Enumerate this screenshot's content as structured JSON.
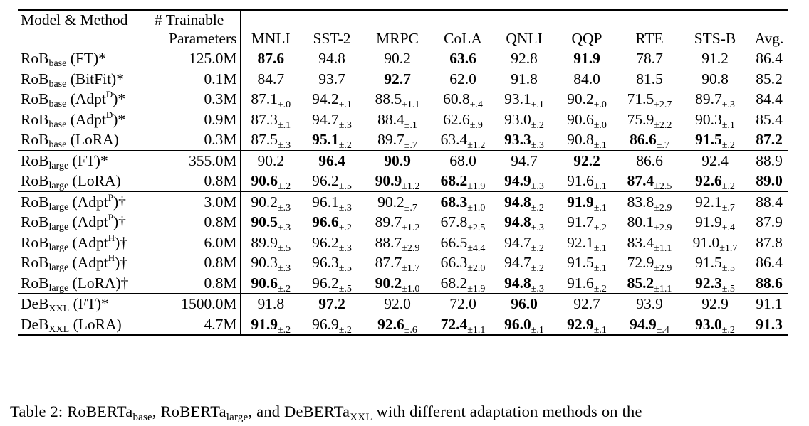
{
  "header": {
    "model_method": "Model & Method",
    "params_line1": "# Trainable",
    "params_line2": "Parameters",
    "tasks": [
      "MNLI",
      "SST-2",
      "MRPC",
      "CoLA",
      "QNLI",
      "QQP",
      "RTE",
      "STS-B",
      "Avg."
    ]
  },
  "groups": [
    [
      {
        "base": "RoB",
        "sub": "base",
        "suffix": "(FT)*",
        "params": "125.0M",
        "cells": [
          [
            "87.6",
            "",
            true
          ],
          [
            "94.8",
            "",
            false
          ],
          [
            "90.2",
            "",
            false
          ],
          [
            "63.6",
            "",
            true
          ],
          [
            "92.8",
            "",
            false
          ],
          [
            "91.9",
            "",
            true
          ],
          [
            "78.7",
            "",
            false
          ],
          [
            "91.2",
            "",
            false
          ],
          [
            "86.4",
            "",
            false
          ]
        ]
      },
      {
        "base": "RoB",
        "sub": "base",
        "suffix": "(BitFit)*",
        "params": "0.1M",
        "cells": [
          [
            "84.7",
            "",
            false
          ],
          [
            "93.7",
            "",
            false
          ],
          [
            "92.7",
            "",
            true
          ],
          [
            "62.0",
            "",
            false
          ],
          [
            "91.8",
            "",
            false
          ],
          [
            "84.0",
            "",
            false
          ],
          [
            "81.5",
            "",
            false
          ],
          [
            "90.8",
            "",
            false
          ],
          [
            "85.2",
            "",
            false
          ]
        ]
      },
      {
        "base": "RoB",
        "sub": "base",
        "suffix": "(Adpt",
        "sup": "D",
        "suffix2": ")*",
        "params": "0.3M",
        "cells": [
          [
            "87.1",
            "±.0",
            false
          ],
          [
            "94.2",
            "±.1",
            false
          ],
          [
            "88.5",
            "±1.1",
            false
          ],
          [
            "60.8",
            "±.4",
            false
          ],
          [
            "93.1",
            "±.1",
            false
          ],
          [
            "90.2",
            "±.0",
            false
          ],
          [
            "71.5",
            "±2.7",
            false
          ],
          [
            "89.7",
            "±.3",
            false
          ],
          [
            "84.4",
            "",
            false
          ]
        ]
      },
      {
        "base": "RoB",
        "sub": "base",
        "suffix": "(Adpt",
        "sup": "D",
        "suffix2": ")*",
        "params": "0.9M",
        "cells": [
          [
            "87.3",
            "±.1",
            false
          ],
          [
            "94.7",
            "±.3",
            false
          ],
          [
            "88.4",
            "±.1",
            false
          ],
          [
            "62.6",
            "±.9",
            false
          ],
          [
            "93.0",
            "±.2",
            false
          ],
          [
            "90.6",
            "±.0",
            false
          ],
          [
            "75.9",
            "±2.2",
            false
          ],
          [
            "90.3",
            "±.1",
            false
          ],
          [
            "85.4",
            "",
            false
          ]
        ]
      },
      {
        "base": "RoB",
        "sub": "base",
        "suffix": "(LoRA)",
        "params": "0.3M",
        "cells": [
          [
            "87.5",
            "±.3",
            false
          ],
          [
            "95.1",
            "±.2",
            true
          ],
          [
            "89.7",
            "±.7",
            false
          ],
          [
            "63.4",
            "±1.2",
            false
          ],
          [
            "93.3",
            "±.3",
            true
          ],
          [
            "90.8",
            "±.1",
            false
          ],
          [
            "86.6",
            "±.7",
            true
          ],
          [
            "91.5",
            "±.2",
            true
          ],
          [
            "87.2",
            "",
            true
          ]
        ]
      }
    ],
    [
      {
        "base": "RoB",
        "sub": "large",
        "suffix": "(FT)*",
        "params": "355.0M",
        "cells": [
          [
            "90.2",
            "",
            false
          ],
          [
            "96.4",
            "",
            true
          ],
          [
            "90.9",
            "",
            true
          ],
          [
            "68.0",
            "",
            false
          ],
          [
            "94.7",
            "",
            false
          ],
          [
            "92.2",
            "",
            true
          ],
          [
            "86.6",
            "",
            false
          ],
          [
            "92.4",
            "",
            false
          ],
          [
            "88.9",
            "",
            false
          ]
        ]
      },
      {
        "base": "RoB",
        "sub": "large",
        "suffix": "(LoRA)",
        "params": "0.8M",
        "cells": [
          [
            "90.6",
            "±.2",
            true
          ],
          [
            "96.2",
            "±.5",
            false
          ],
          [
            "90.9",
            "±1.2",
            true
          ],
          [
            "68.2",
            "±1.9",
            true
          ],
          [
            "94.9",
            "±.3",
            true
          ],
          [
            "91.6",
            "±.1",
            false
          ],
          [
            "87.4",
            "±2.5",
            true
          ],
          [
            "92.6",
            "±.2",
            true
          ],
          [
            "89.0",
            "",
            true
          ]
        ]
      }
    ],
    [
      {
        "base": "RoB",
        "sub": "large",
        "suffix": "(Adpt",
        "sup": "P",
        "suffix2": ")†",
        "params": "3.0M",
        "cells": [
          [
            "90.2",
            "±.3",
            false
          ],
          [
            "96.1",
            "±.3",
            false
          ],
          [
            "90.2",
            "±.7",
            false
          ],
          [
            "68.3",
            "±1.0",
            true
          ],
          [
            "94.8",
            "±.2",
            true
          ],
          [
            "91.9",
            "±.1",
            true
          ],
          [
            "83.8",
            "±2.9",
            false
          ],
          [
            "92.1",
            "±.7",
            false
          ],
          [
            "88.4",
            "",
            false
          ]
        ]
      },
      {
        "base": "RoB",
        "sub": "large",
        "suffix": "(Adpt",
        "sup": "P",
        "suffix2": ")†",
        "params": "0.8M",
        "cells": [
          [
            "90.5",
            "±.3",
            true
          ],
          [
            "96.6",
            "±.2",
            true
          ],
          [
            "89.7",
            "±1.2",
            false
          ],
          [
            "67.8",
            "±2.5",
            false
          ],
          [
            "94.8",
            "±.3",
            true
          ],
          [
            "91.7",
            "±.2",
            false
          ],
          [
            "80.1",
            "±2.9",
            false
          ],
          [
            "91.9",
            "±.4",
            false
          ],
          [
            "87.9",
            "",
            false
          ]
        ]
      },
      {
        "base": "RoB",
        "sub": "large",
        "suffix": "(Adpt",
        "sup": "H",
        "suffix2": ")†",
        "params": "6.0M",
        "cells": [
          [
            "89.9",
            "±.5",
            false
          ],
          [
            "96.2",
            "±.3",
            false
          ],
          [
            "88.7",
            "±2.9",
            false
          ],
          [
            "66.5",
            "±4.4",
            false
          ],
          [
            "94.7",
            "±.2",
            false
          ],
          [
            "92.1",
            "±.1",
            false
          ],
          [
            "83.4",
            "±1.1",
            false
          ],
          [
            "91.0",
            "±1.7",
            false
          ],
          [
            "87.8",
            "",
            false
          ]
        ]
      },
      {
        "base": "RoB",
        "sub": "large",
        "suffix": "(Adpt",
        "sup": "H",
        "suffix2": ")†",
        "params": "0.8M",
        "cells": [
          [
            "90.3",
            "±.3",
            false
          ],
          [
            "96.3",
            "±.5",
            false
          ],
          [
            "87.7",
            "±1.7",
            false
          ],
          [
            "66.3",
            "±2.0",
            false
          ],
          [
            "94.7",
            "±.2",
            false
          ],
          [
            "91.5",
            "±.1",
            false
          ],
          [
            "72.9",
            "±2.9",
            false
          ],
          [
            "91.5",
            "±.5",
            false
          ],
          [
            "86.4",
            "",
            false
          ]
        ]
      },
      {
        "base": "RoB",
        "sub": "large",
        "suffix": "(LoRA)†",
        "params": "0.8M",
        "cells": [
          [
            "90.6",
            "±.2",
            true
          ],
          [
            "96.2",
            "±.5",
            false
          ],
          [
            "90.2",
            "±1.0",
            true
          ],
          [
            "68.2",
            "±1.9",
            false
          ],
          [
            "94.8",
            "±.3",
            true
          ],
          [
            "91.6",
            "±.2",
            false
          ],
          [
            "85.2",
            "±1.1",
            true
          ],
          [
            "92.3",
            "±.5",
            true
          ],
          [
            "88.6",
            "",
            true
          ]
        ]
      }
    ],
    [
      {
        "base": "DeB",
        "sub": "XXL",
        "suffix": "(FT)*",
        "params": "1500.0M",
        "cells": [
          [
            "91.8",
            "",
            false
          ],
          [
            "97.2",
            "",
            true
          ],
          [
            "92.0",
            "",
            false
          ],
          [
            "72.0",
            "",
            false
          ],
          [
            "96.0",
            "",
            true
          ],
          [
            "92.7",
            "",
            false
          ],
          [
            "93.9",
            "",
            false
          ],
          [
            "92.9",
            "",
            false
          ],
          [
            "91.1",
            "",
            false
          ]
        ]
      },
      {
        "base": "DeB",
        "sub": "XXL",
        "suffix": "(LoRA)",
        "params": "4.7M",
        "cells": [
          [
            "91.9",
            "±.2",
            true
          ],
          [
            "96.9",
            "±.2",
            false
          ],
          [
            "92.6",
            "±.6",
            true
          ],
          [
            "72.4",
            "±1.1",
            true
          ],
          [
            "96.0",
            "±.1",
            true
          ],
          [
            "92.9",
            "±.1",
            true
          ],
          [
            "94.9",
            "±.4",
            true
          ],
          [
            "93.0",
            "±.2",
            true
          ],
          [
            "91.3",
            "",
            true
          ]
        ]
      }
    ]
  ],
  "caption": {
    "prefix": "Table 2: RoBERTa",
    "sub1": "base",
    "mid1": ", RoBERTa",
    "sub2": "large",
    "mid2": ", and DeBERTa",
    "sub3": "XXL",
    "suffix": " with different adaptation methods on the"
  }
}
